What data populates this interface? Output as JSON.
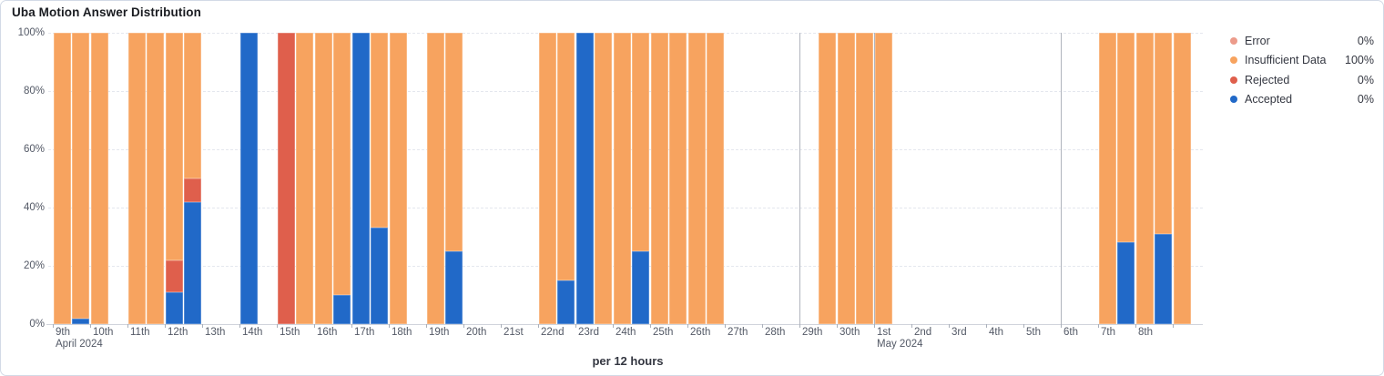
{
  "header": {
    "title": "Uba Motion Answer Distribution"
  },
  "chart_data": {
    "type": "bar",
    "stacked": true,
    "title": "Uba Motion Answer Distribution",
    "x_axis_title": "per 12 hours",
    "interval": "12 hours",
    "legend_position": "right",
    "y_axis": {
      "min": 0,
      "max": 100,
      "ticks": [
        {
          "pct": 0,
          "label": "0%"
        },
        {
          "pct": 20,
          "label": "20%"
        },
        {
          "pct": 40,
          "label": "40%"
        },
        {
          "pct": 60,
          "label": "60%"
        },
        {
          "pct": 80,
          "label": "80%"
        },
        {
          "pct": 100,
          "label": "100%"
        }
      ]
    },
    "x_axis": {
      "day_labels": [
        "9th",
        "10th",
        "11th",
        "12th",
        "13th",
        "14th",
        "15th",
        "16th",
        "17th",
        "18th",
        "19th",
        "20th",
        "21st",
        "22nd",
        "23rd",
        "24th",
        "25th",
        "26th",
        "27th",
        "28th",
        "29th",
        "30th",
        "1st",
        "2nd",
        "3rd",
        "4th",
        "5th",
        "6th",
        "7th",
        "8th",
        ""
      ],
      "month_labels": [
        {
          "day_index": 0,
          "label": "April 2024"
        },
        {
          "day_index": 22,
          "label": "May 2024"
        }
      ],
      "separator_day_indices": [
        20,
        22,
        27
      ]
    },
    "series": [
      {
        "id": "error",
        "label": "Error",
        "color": "#EC9B8B",
        "value_label": "0%"
      },
      {
        "id": "insufficient_data",
        "label": "Insufficient Data",
        "color": "#F7A35F",
        "value_label": "100%"
      },
      {
        "id": "rejected",
        "label": "Rejected",
        "color": "#DF5F4C",
        "value_label": "0%"
      },
      {
        "id": "accepted",
        "label": "Accepted",
        "color": "#2169C8",
        "value_label": "0%"
      }
    ],
    "stack_order": [
      "accepted",
      "rejected",
      "insufficient_data",
      "error"
    ],
    "bars": [
      {
        "slot": 0,
        "insufficient_data": 100
      },
      {
        "slot": 1,
        "accepted": 2,
        "insufficient_data": 98
      },
      {
        "slot": 2,
        "insufficient_data": 100
      },
      {
        "slot": 4,
        "insufficient_data": 100
      },
      {
        "slot": 5,
        "insufficient_data": 100
      },
      {
        "slot": 6,
        "accepted": 11,
        "rejected": 11,
        "insufficient_data": 78
      },
      {
        "slot": 7,
        "accepted": 42,
        "rejected": 8,
        "insufficient_data": 50
      },
      {
        "slot": 10,
        "accepted": 100
      },
      {
        "slot": 12,
        "rejected": 100
      },
      {
        "slot": 13,
        "insufficient_data": 100
      },
      {
        "slot": 14,
        "insufficient_data": 100
      },
      {
        "slot": 15,
        "accepted": 10,
        "insufficient_data": 90
      },
      {
        "slot": 16,
        "accepted": 100
      },
      {
        "slot": 17,
        "accepted": 33,
        "insufficient_data": 67
      },
      {
        "slot": 18,
        "insufficient_data": 100
      },
      {
        "slot": 20,
        "insufficient_data": 100
      },
      {
        "slot": 21,
        "accepted": 25,
        "insufficient_data": 75
      },
      {
        "slot": 26,
        "insufficient_data": 100
      },
      {
        "slot": 27,
        "accepted": 15,
        "insufficient_data": 85
      },
      {
        "slot": 28,
        "accepted": 100
      },
      {
        "slot": 29,
        "insufficient_data": 100
      },
      {
        "slot": 30,
        "insufficient_data": 100
      },
      {
        "slot": 31,
        "accepted": 25,
        "insufficient_data": 75
      },
      {
        "slot": 32,
        "insufficient_data": 100
      },
      {
        "slot": 33,
        "insufficient_data": 100
      },
      {
        "slot": 34,
        "insufficient_data": 100
      },
      {
        "slot": 35,
        "insufficient_data": 100
      },
      {
        "slot": 41,
        "insufficient_data": 100
      },
      {
        "slot": 42,
        "insufficient_data": 100
      },
      {
        "slot": 43,
        "insufficient_data": 100
      },
      {
        "slot": 44,
        "insufficient_data": 100
      },
      {
        "slot": 56,
        "insufficient_data": 100
      },
      {
        "slot": 57,
        "accepted": 28,
        "insufficient_data": 72
      },
      {
        "slot": 58,
        "insufficient_data": 100
      },
      {
        "slot": 59,
        "accepted": 31,
        "insufficient_data": 69
      },
      {
        "slot": 60,
        "insufficient_data": 100
      }
    ]
  }
}
